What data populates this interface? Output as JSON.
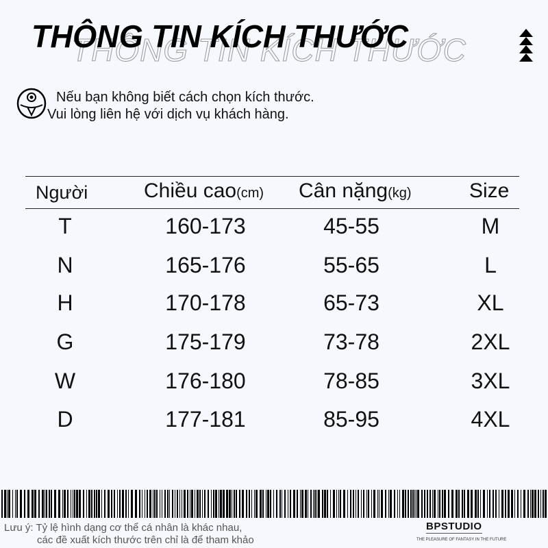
{
  "title": "THÔNG TIN KÍCH THƯỚC",
  "icons": {
    "decor": "triangle-stack-icon",
    "help": "face-icon"
  },
  "notice": {
    "line1": "Nếu bạn không biết cách chọn kích thước.",
    "line2": "Vui lòng liên hệ với dịch vụ khách hàng."
  },
  "table": {
    "headers": [
      {
        "label": "Người",
        "unit": ""
      },
      {
        "label": "Chiều cao",
        "unit": "(cm)"
      },
      {
        "label": "Cân nặng",
        "unit": "(kg)"
      },
      {
        "label": "Size",
        "unit": ""
      }
    ],
    "rows": [
      [
        "T",
        "160-173",
        "45-55",
        "M"
      ],
      [
        "N",
        "165-176",
        "55-65",
        "L"
      ],
      [
        "H",
        "170-178",
        "65-73",
        "XL"
      ],
      [
        "G",
        "175-179",
        "73-78",
        "2XL"
      ],
      [
        "W",
        "176-180",
        "78-85",
        "3XL"
      ],
      [
        "D",
        "177-181",
        "85-95",
        "4XL"
      ]
    ]
  },
  "footer": {
    "note_line1": "Lưu ý: Tỷ lệ hình dạng cơ thể cá nhân là khác nhau,",
    "note_line2": "các đề xuất kích thước trên chỉ là để tham khảo",
    "brand": "BPSTUDIO",
    "tagline": "THE PLEASURE OF FANTASY IN THE FUTURE"
  }
}
